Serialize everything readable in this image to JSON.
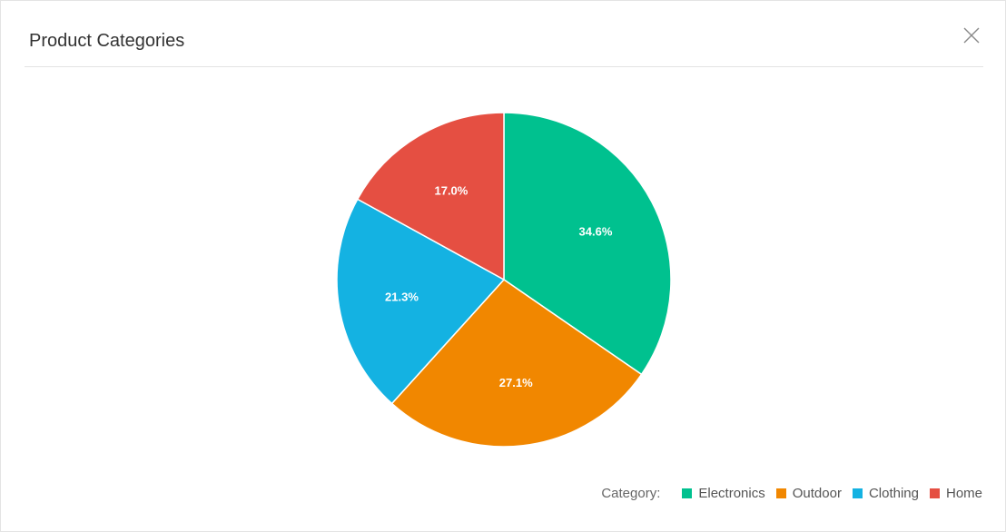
{
  "dialog": {
    "title": "Product Categories"
  },
  "chart_data": {
    "type": "pie",
    "title": "Product Categories",
    "legend_title": "Category:",
    "legend_placement": "bottom-right",
    "slices": [
      {
        "label": "Electronics",
        "value": 34.6,
        "display": "34.6%",
        "color": "#00c18f"
      },
      {
        "label": "Outdoor",
        "value": 27.1,
        "display": "27.1%",
        "color": "#f18700"
      },
      {
        "label": "Clothing",
        "value": 21.3,
        "display": "21.3%",
        "color": "#14b2e2"
      },
      {
        "label": "Home",
        "value": 17.0,
        "display": "17.0%",
        "color": "#e54f42"
      }
    ]
  },
  "icons": {
    "close": "close-icon"
  }
}
